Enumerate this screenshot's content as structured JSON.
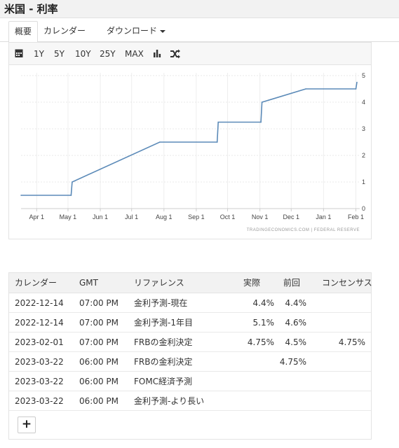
{
  "page": {
    "title": "米国 - 利率"
  },
  "tabs": [
    {
      "label": "概要",
      "active": true
    },
    {
      "label": "カレンダー",
      "active": false
    },
    {
      "label": "ダウンロード",
      "active": false
    }
  ],
  "toolbar": {
    "ranges": [
      "1Y",
      "5Y",
      "10Y",
      "25Y",
      "MAX"
    ],
    "icons": [
      "calendar-icon",
      "bar-chart-icon",
      "shuffle-icon"
    ]
  },
  "chart_data": {
    "type": "line",
    "x_tick_labels": [
      "Apr 1",
      "May 1",
      "Jun 1",
      "Jul 1",
      "Aug 1",
      "Sep 1",
      "Oct 1",
      "Nov 1",
      "Dec 1",
      "Jan 1",
      "Feb 1"
    ],
    "y_tick_labels": [
      "0",
      "1",
      "2",
      "3",
      "4",
      "5"
    ],
    "ylim": [
      0,
      5
    ],
    "series": [
      {
        "color": "#5b8ab8",
        "points": [
          {
            "x": "2022-03-17",
            "y": 0.5
          },
          {
            "x": "2022-05-04",
            "y": 0.5
          },
          {
            "x": "2022-05-05",
            "y": 1.0
          },
          {
            "x": "2022-07-28",
            "y": 2.5
          },
          {
            "x": "2022-09-21",
            "y": 2.5
          },
          {
            "x": "2022-09-22",
            "y": 3.25
          },
          {
            "x": "2022-11-02",
            "y": 3.25
          },
          {
            "x": "2022-11-03",
            "y": 4.0
          },
          {
            "x": "2022-12-15",
            "y": 4.5
          },
          {
            "x": "2023-02-01",
            "y": 4.5
          },
          {
            "x": "2023-02-02",
            "y": 4.75
          }
        ]
      }
    ],
    "source": "TRADINGECONOMICS.COM  |  FEDERAL RESERVE",
    "grid": true
  },
  "calendar": {
    "headers": [
      "カレンダー",
      "GMT",
      "リファレンス",
      "実際",
      "前回",
      "コンセンサス"
    ],
    "rows": [
      {
        "date": "2022-12-14",
        "time": "07:00 PM",
        "reference": "金利予測-現在",
        "actual": "4.4%",
        "previous": "4.4%",
        "consensus": ""
      },
      {
        "date": "2022-12-14",
        "time": "07:00 PM",
        "reference": "金利予測-1年目",
        "actual": "5.1%",
        "previous": "4.6%",
        "consensus": ""
      },
      {
        "date": "2023-02-01",
        "time": "07:00 PM",
        "reference": "FRBの金利決定",
        "actual": "4.75%",
        "previous": "4.5%",
        "consensus": "4.75%"
      },
      {
        "date": "2023-03-22",
        "time": "06:00 PM",
        "reference": "FRBの金利決定",
        "actual": "",
        "previous": "4.75%",
        "consensus": ""
      },
      {
        "date": "2023-03-22",
        "time": "06:00 PM",
        "reference": "FOMC経済予測",
        "actual": "",
        "previous": "",
        "consensus": ""
      },
      {
        "date": "2023-03-22",
        "time": "06:00 PM",
        "reference": "金利予測-より長い",
        "actual": "",
        "previous": "",
        "consensus": ""
      }
    ],
    "add_label": "+"
  }
}
